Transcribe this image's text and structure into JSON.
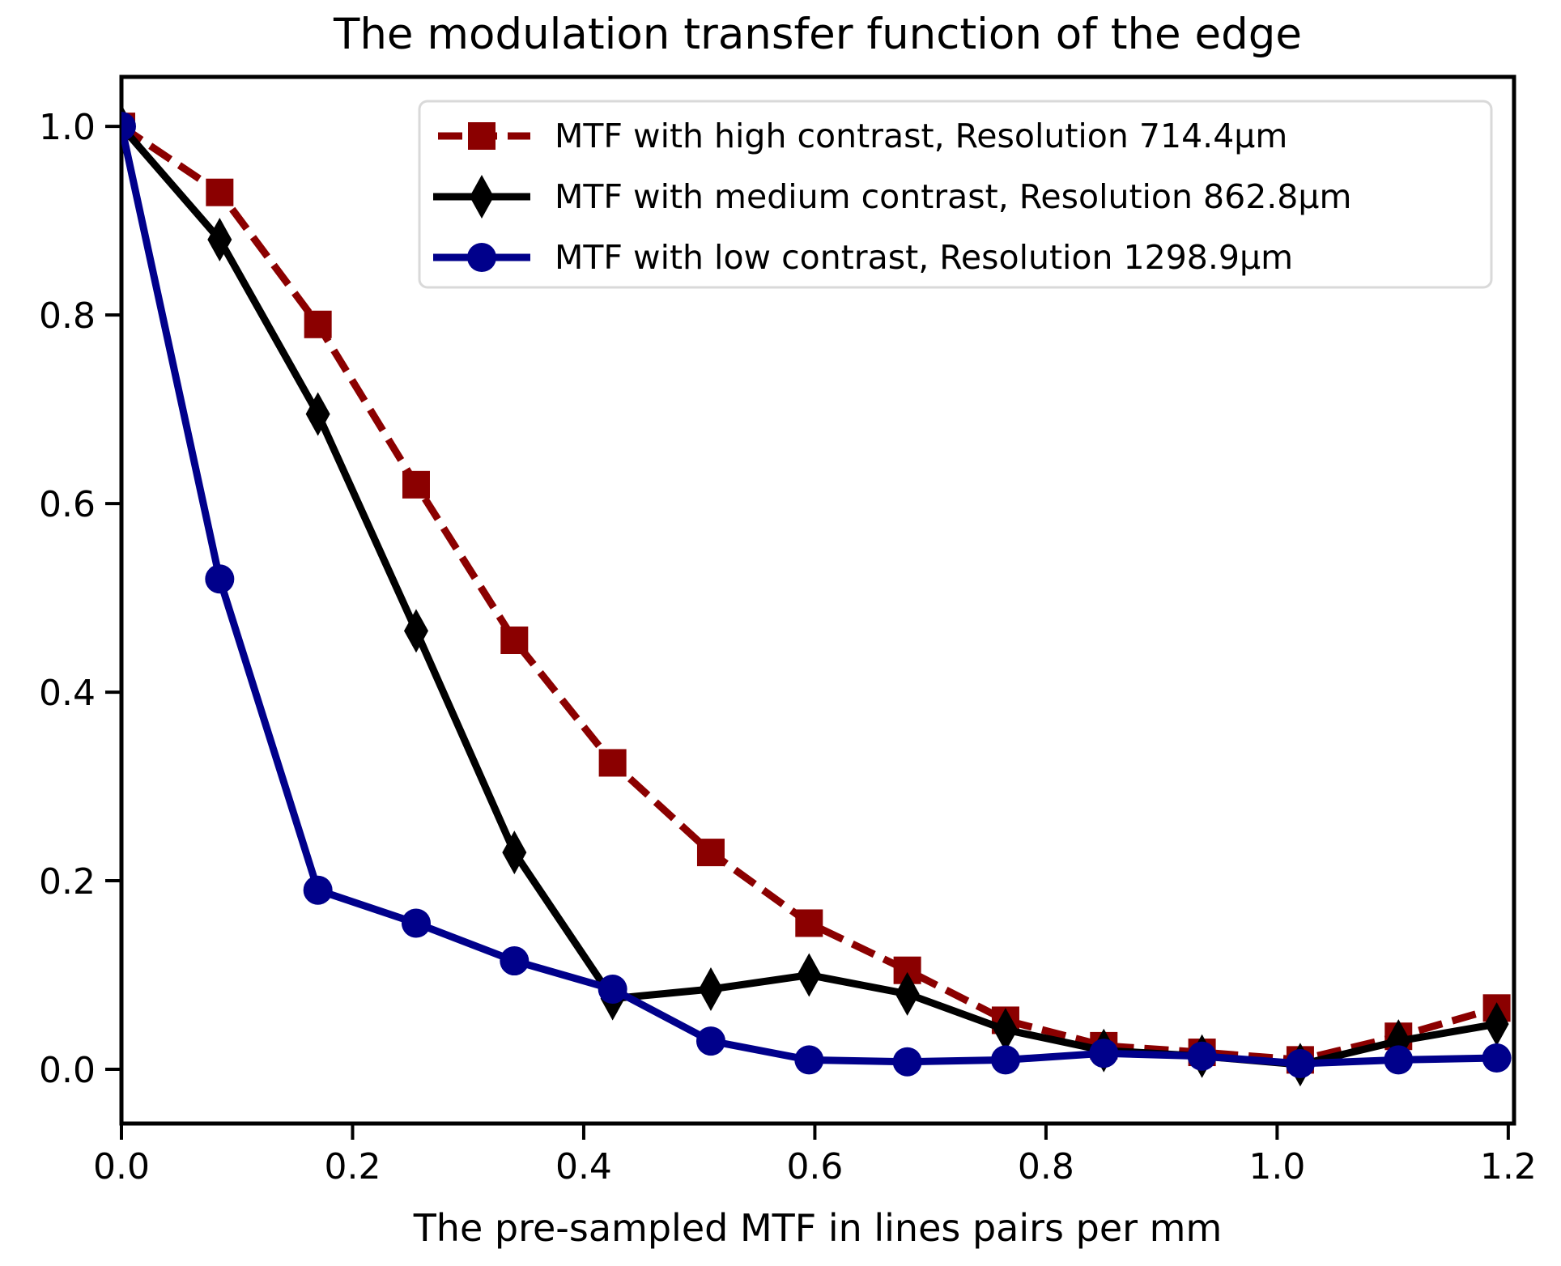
{
  "chart_data": {
    "type": "line",
    "title": "The modulation transfer function of the edge",
    "xlabel": "The pre-sampled MTF in lines pairs per mm",
    "ylabel": "",
    "grid": false,
    "xlim": [
      0,
      1.205
    ],
    "ylim": [
      -0.0575,
      1.0525
    ],
    "legend_position": "upper right inside",
    "x_ticks": {
      "values": [
        0,
        0.2,
        0.4,
        0.6,
        0.8,
        1.0,
        1.2
      ],
      "labels": [
        "0.0",
        "0.2",
        "0.4",
        "0.6",
        "0.8",
        "1.0",
        "1.2"
      ]
    },
    "y_ticks": {
      "values": [
        0,
        0.2,
        0.4,
        0.6,
        0.8,
        1.0
      ],
      "labels": [
        "0.0",
        "0.2",
        "0.4",
        "0.6",
        "0.8",
        "1.0"
      ]
    },
    "x": [
      0.0,
      0.085,
      0.17,
      0.255,
      0.34,
      0.425,
      0.51,
      0.595,
      0.68,
      0.765,
      0.85,
      0.935,
      1.02,
      1.105,
      1.19
    ],
    "series": [
      {
        "name": "MTF with high contrast, Resolution 714.4μm",
        "color": "#8b0000",
        "line_style": "dashed",
        "marker": "square",
        "values": [
          1.0,
          0.93,
          0.79,
          0.62,
          0.455,
          0.325,
          0.23,
          0.155,
          0.105,
          0.052,
          0.025,
          0.018,
          0.01,
          0.035,
          0.065
        ]
      },
      {
        "name": "MTF with medium contrast, Resolution 862.8μm",
        "color": "#000000",
        "line_style": "solid",
        "marker": "thin-diamond",
        "values": [
          1.0,
          0.88,
          0.695,
          0.465,
          0.23,
          0.075,
          0.085,
          0.1,
          0.08,
          0.042,
          0.02,
          0.014,
          0.005,
          0.03,
          0.048
        ]
      },
      {
        "name": "MTF with low contrast, Resolution 1298.9μm",
        "color": "#00008b",
        "line_style": "solid",
        "marker": "circle",
        "values": [
          1.0,
          0.52,
          0.19,
          0.155,
          0.115,
          0.085,
          0.03,
          0.01,
          0.008,
          0.01,
          0.017,
          0.014,
          0.006,
          0.01,
          0.012
        ]
      }
    ]
  }
}
